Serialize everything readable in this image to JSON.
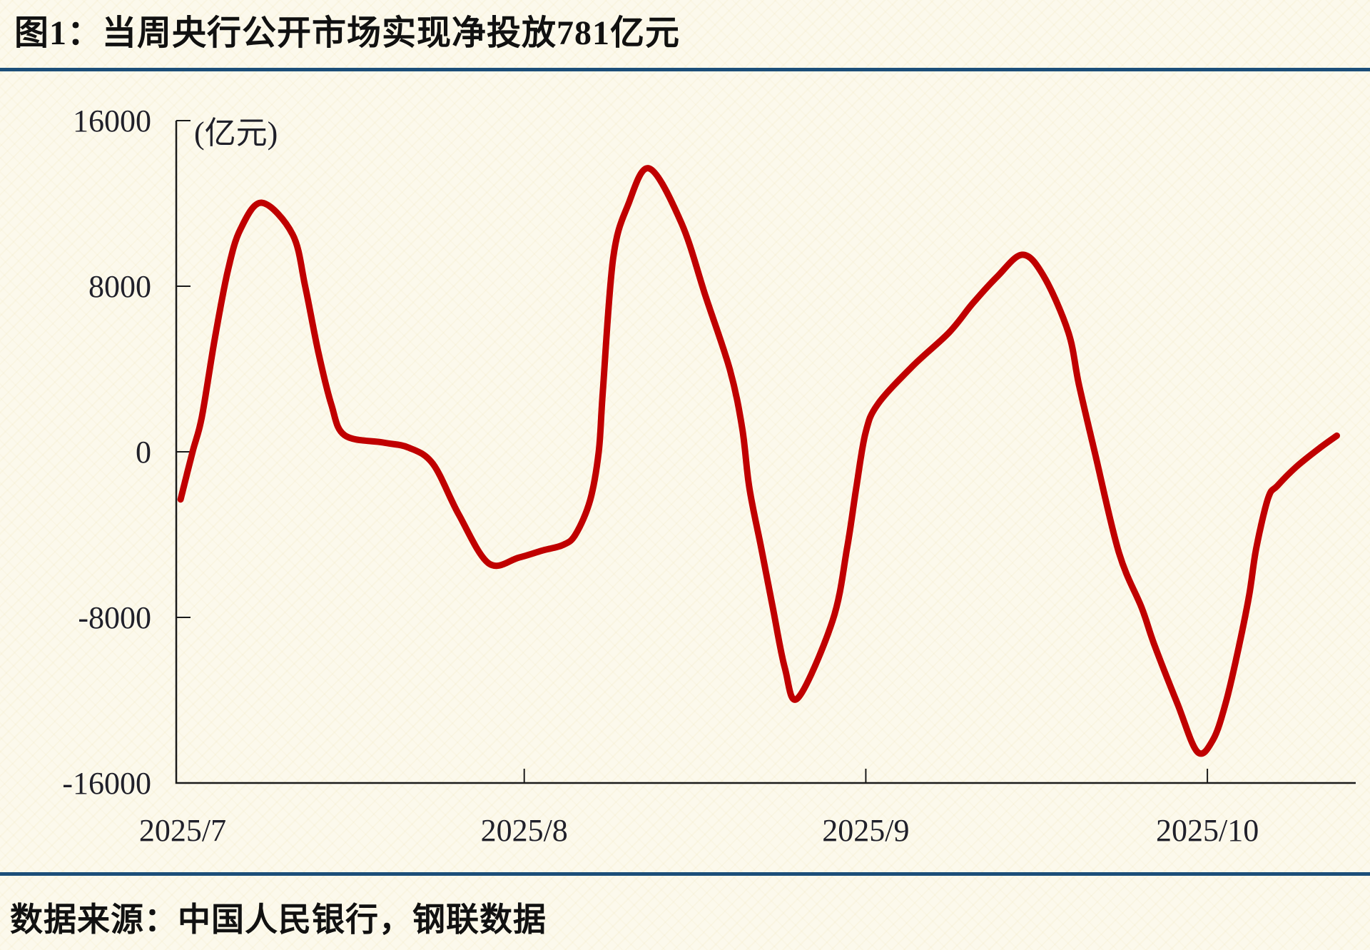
{
  "page": {
    "title": "图1：当周央行公开市场实现净投放781亿元",
    "source": "数据来源：中国人民银行，钢联数据",
    "accent_rule_color": "#1B4E79",
    "background_color": "#FCF9EC",
    "text_color": "#111111"
  },
  "chart_data": {
    "type": "line",
    "title": "图1：当周央行公开市场实现净投放781亿元",
    "unit_label": "(亿元)",
    "line_color": "#C00000",
    "axis_color": "#1A1A1A",
    "tick_label_color": "#20202A",
    "grid": "off",
    "legend": "none",
    "x_ticks": [
      {
        "label": "2025/7",
        "month": 7
      },
      {
        "label": "2025/8",
        "month": 8
      },
      {
        "label": "2025/9",
        "month": 9
      },
      {
        "label": "2025/10",
        "month": 10
      }
    ],
    "y_ticks": [
      16000,
      8000,
      0,
      -8000,
      -16000
    ],
    "ylim": [
      -16000,
      16000
    ],
    "xlim_months": [
      6.98,
      10.44
    ],
    "latest_week_net_injection": 781,
    "key_features": {
      "peaks": [
        12000,
        13700,
        9500
      ],
      "troughs": [
        -5400,
        -11900,
        -14500
      ],
      "end_value": 781
    },
    "series": [
      {
        "points": [
          [
            6.994,
            -2300
          ],
          [
            7.029,
            0
          ],
          [
            7.056,
            1670
          ],
          [
            7.094,
            5460
          ],
          [
            7.132,
            8730
          ],
          [
            7.169,
            10750
          ],
          [
            7.232,
            12030
          ],
          [
            7.322,
            10500
          ],
          [
            7.359,
            7960
          ],
          [
            7.397,
            4830
          ],
          [
            7.435,
            2300
          ],
          [
            7.474,
            800
          ],
          [
            7.587,
            450
          ],
          [
            7.662,
            200
          ],
          [
            7.733,
            -590
          ],
          [
            7.808,
            -3020
          ],
          [
            7.896,
            -5390
          ],
          [
            7.984,
            -5110
          ],
          [
            8.053,
            -4770
          ],
          [
            8.115,
            -4490
          ],
          [
            8.151,
            -3970
          ],
          [
            8.193,
            -2330
          ],
          [
            8.218,
            0
          ],
          [
            8.23,
            2900
          ],
          [
            8.26,
            9320
          ],
          [
            8.304,
            11930
          ],
          [
            8.366,
            13690
          ],
          [
            8.46,
            11060
          ],
          [
            8.531,
            7510
          ],
          [
            8.602,
            3970
          ],
          [
            8.638,
            1150
          ],
          [
            8.659,
            -1740
          ],
          [
            8.694,
            -4660
          ],
          [
            8.728,
            -7550
          ],
          [
            8.763,
            -10440
          ],
          [
            8.801,
            -11900
          ],
          [
            8.903,
            -8140
          ],
          [
            8.945,
            -4660
          ],
          [
            8.972,
            -1740
          ],
          [
            8.999,
            900
          ],
          [
            9.035,
            2300
          ],
          [
            9.139,
            4170
          ],
          [
            9.244,
            5770
          ],
          [
            9.313,
            7170
          ],
          [
            9.384,
            8450
          ],
          [
            9.459,
            9520
          ],
          [
            9.522,
            8450
          ],
          [
            9.593,
            5770
          ],
          [
            9.624,
            3240
          ],
          [
            9.67,
            0
          ],
          [
            9.741,
            -4870
          ],
          [
            9.808,
            -7550
          ],
          [
            9.844,
            -9290
          ],
          [
            9.913,
            -12200
          ],
          [
            9.971,
            -14500
          ],
          [
            10.017,
            -13900
          ],
          [
            10.053,
            -12170
          ],
          [
            10.086,
            -9880
          ],
          [
            10.122,
            -6960
          ],
          [
            10.143,
            -4660
          ],
          [
            10.178,
            -2230
          ],
          [
            10.205,
            -1640
          ],
          [
            10.262,
            -700
          ],
          [
            10.331,
            210
          ],
          [
            10.379,
            781
          ]
        ]
      }
    ]
  }
}
